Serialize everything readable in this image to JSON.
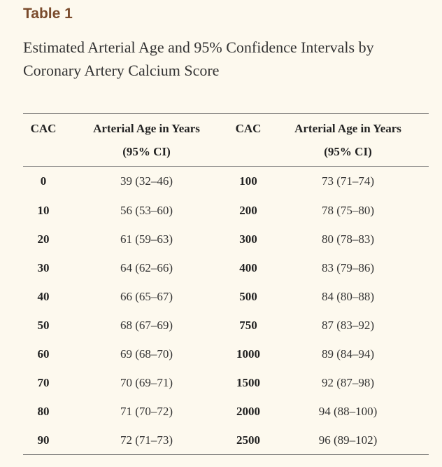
{
  "table": {
    "label": "Table 1",
    "caption": "Estimated Arterial Age and 95% Confidence Intervals by Coronary Artery Calcium Score",
    "headers": {
      "cac_left": "CAC",
      "age_left_line1": "Arterial Age in Years",
      "age_left_line2": "(95% CI)",
      "cac_right": "CAC",
      "age_right_line1": "Arterial Age in Years",
      "age_right_line2": "(95% CI)"
    },
    "rows": [
      {
        "cac_a": "0",
        "age_a": "39 (32–46)",
        "cac_b": "100",
        "age_b": "73 (71–74)"
      },
      {
        "cac_a": "10",
        "age_a": "56 (53–60)",
        "cac_b": "200",
        "age_b": "78 (75–80)"
      },
      {
        "cac_a": "20",
        "age_a": "61 (59–63)",
        "cac_b": "300",
        "age_b": "80 (78–83)"
      },
      {
        "cac_a": "30",
        "age_a": "64 (62–66)",
        "cac_b": "400",
        "age_b": "83 (79–86)"
      },
      {
        "cac_a": "40",
        "age_a": "66 (65–67)",
        "cac_b": "500",
        "age_b": "84 (80–88)"
      },
      {
        "cac_a": "50",
        "age_a": "68 (67–69)",
        "cac_b": "750",
        "age_b": "87 (83–92)"
      },
      {
        "cac_a": "60",
        "age_a": "69 (68–70)",
        "cac_b": "1000",
        "age_b": "89 (84–94)"
      },
      {
        "cac_a": "70",
        "age_a": "70 (69–71)",
        "cac_b": "1500",
        "age_b": "92 (87–98)"
      },
      {
        "cac_a": "80",
        "age_a": "71 (70–72)",
        "cac_b": "2000",
        "age_b": "94 (88–100)"
      },
      {
        "cac_a": "90",
        "age_a": "72 (71–73)",
        "cac_b": "2500",
        "age_b": "96 (89–102)"
      }
    ]
  }
}
